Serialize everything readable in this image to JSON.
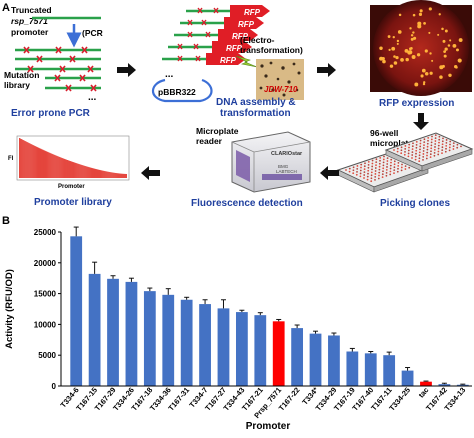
{
  "panel_a": {
    "label": "A",
    "truncated_line1": "Truncated",
    "truncated_line2": "rsp_7571",
    "truncated_line3": "promoter",
    "pcr_label": "(PCR",
    "mutation_line1": "Mutation",
    "mutation_line2": "library",
    "ellipsis": "...",
    "error_prone_pcr": "Error prone PCR",
    "rfp_label": "RFP",
    "plasmid_label": "pBBR322",
    "electro_line1": "(Electro-",
    "electro_line2": "transformation)",
    "strain_label": "JDW-710",
    "dna_assembly_line1": "DNA assembly &",
    "dna_assembly_line2": "transformation",
    "rfp_expression": "RFP expression",
    "microplate_line1": "96-well",
    "microplate_line2": "microplate",
    "picking_clones": "Picking clones",
    "reader_line1": "Microplate",
    "reader_line2": "reader",
    "reader_brand": "CLARIOstar",
    "reader_sub1": "BMG",
    "reader_sub2": "LABTECH",
    "fluorescence_detection": "Fluorescence detection",
    "mini_ylabel": "FI",
    "mini_xlabel": "Promoter",
    "promoter_library": "Promoter library",
    "colors": {
      "title_blue": "#1f3f9e",
      "line_green": "#2aa14a",
      "mutation_red": "#d81e2c",
      "arrow_dark": "#111111"
    }
  },
  "panel_b": {
    "label": "B",
    "chart_data": {
      "type": "bar",
      "title": "",
      "xlabel": "Promoter",
      "ylabel": "Activity (RFU/OD)",
      "ylim": [
        0,
        25000
      ],
      "yticks": [
        0,
        5000,
        10000,
        15000,
        20000,
        25000
      ],
      "categories": [
        "T334-6",
        "T167-15",
        "T167-29",
        "T334-26",
        "T167-18",
        "T334-36",
        "T167-31",
        "T334-7",
        "T167-27",
        "T334-43",
        "T167-21",
        "Prsp_7571",
        "T167-22",
        "T334*",
        "T334-29",
        "T167-19",
        "T167-40",
        "T167-11",
        "T334-25",
        "tac",
        "T167-42",
        "T334-13"
      ],
      "values": [
        24300,
        18200,
        17400,
        16900,
        15400,
        14800,
        14000,
        13300,
        12600,
        12000,
        11500,
        10500,
        9400,
        8500,
        8200,
        5600,
        5300,
        5000,
        2500,
        700,
        300,
        200
      ],
      "errors": [
        1500,
        1900,
        500,
        600,
        500,
        1000,
        400,
        700,
        1400,
        300,
        400,
        300,
        500,
        400,
        400,
        500,
        300,
        500,
        500,
        100,
        150,
        100
      ],
      "highlighted": [
        "Prsp_7571",
        "tac"
      ],
      "colors": {
        "bar": "#4472c4",
        "highlight": "#ff0000",
        "error": "#111111"
      },
      "grid": false
    }
  }
}
